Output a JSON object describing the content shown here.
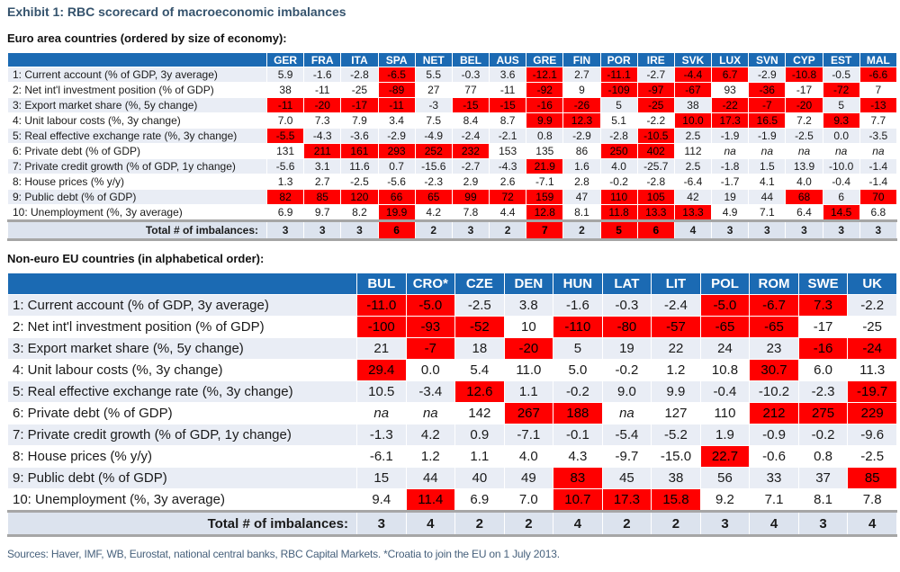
{
  "page": {
    "title": "Exhibit 1: RBC scorecard of macroeconomic imbalances",
    "footer": "Sources: Haver, IMF, WB, Eurostat, national central banks, RBC Capital Markets. *Croatia to join the EU on 1 July 2013."
  },
  "colors": {
    "header_blue": "#1b6ab3",
    "flag_red": "#ff0000",
    "row_alt": "#e9edf5",
    "total_bg": "#dce3ee",
    "bar_gray": "#a6a6a6",
    "title_color": "#35536d",
    "footer_color": "#47617c"
  },
  "tables": [
    {
      "subtitle": "Euro area countries (ordered by size of economy):",
      "columns": [
        "GER",
        "FRA",
        "ITA",
        "SPA",
        "NET",
        "BEL",
        "AUS",
        "GRE",
        "FIN",
        "POR",
        "IRE",
        "SVK",
        "LUX",
        "SVN",
        "CYP",
        "EST",
        "MAL"
      ],
      "rows": [
        {
          "label": "1: Current account (% of GDP, 3y average)",
          "values": [
            "5.9",
            "-1.6",
            "-2.8",
            "-6.5",
            "5.5",
            "-0.3",
            "3.6",
            "-12.1",
            "2.7",
            "-11.1",
            "-2.7",
            "-4.4",
            "6.7",
            "-2.9",
            "-10.8",
            "-0.5",
            "-6.6"
          ],
          "red": [
            0,
            0,
            0,
            1,
            0,
            0,
            0,
            1,
            0,
            1,
            0,
            1,
            1,
            0,
            1,
            0,
            1
          ]
        },
        {
          "label": "2: Net int'l investment position (% of GDP)",
          "values": [
            "38",
            "-11",
            "-25",
            "-89",
            "27",
            "77",
            "-11",
            "-92",
            "9",
            "-109",
            "-97",
            "-67",
            "93",
            "-36",
            "-17",
            "-72",
            "7"
          ],
          "red": [
            0,
            0,
            0,
            1,
            0,
            0,
            0,
            1,
            0,
            1,
            1,
            1,
            0,
            1,
            0,
            1,
            0
          ]
        },
        {
          "label": "3: Export market share (%, 5y change)",
          "values": [
            "-11",
            "-20",
            "-17",
            "-11",
            "-3",
            "-15",
            "-15",
            "-16",
            "-26",
            "5",
            "-25",
            "38",
            "-22",
            "-7",
            "-20",
            "5",
            "-13"
          ],
          "red": [
            1,
            1,
            1,
            1,
            0,
            1,
            1,
            1,
            1,
            0,
            1,
            0,
            1,
            1,
            1,
            0,
            1
          ]
        },
        {
          "label": "4: Unit labour costs (%, 3y change)",
          "values": [
            "7.0",
            "7.3",
            "7.9",
            "3.4",
            "7.5",
            "8.4",
            "8.7",
            "9.9",
            "12.3",
            "5.1",
            "-2.2",
            "10.0",
            "17.3",
            "16.5",
            "7.2",
            "9.3",
            "7.7"
          ],
          "red": [
            0,
            0,
            0,
            0,
            0,
            0,
            0,
            1,
            1,
            0,
            0,
            1,
            1,
            1,
            0,
            1,
            0
          ]
        },
        {
          "label": "5: Real effective exchange rate (%, 3y change)",
          "values": [
            "-5.5",
            "-4.3",
            "-3.6",
            "-2.9",
            "-4.9",
            "-2.4",
            "-2.1",
            "0.8",
            "-2.9",
            "-2.8",
            "-10.5",
            "2.5",
            "-1.9",
            "-1.9",
            "-2.5",
            "0.0",
            "-3.5"
          ],
          "red": [
            1,
            0,
            0,
            0,
            0,
            0,
            0,
            0,
            0,
            0,
            1,
            0,
            0,
            0,
            0,
            0,
            0
          ]
        },
        {
          "label": "6: Private debt (% of GDP)",
          "values": [
            "131",
            "211",
            "161",
            "293",
            "252",
            "232",
            "153",
            "135",
            "86",
            "250",
            "402",
            "112",
            "na",
            "na",
            "na",
            "na",
            "na"
          ],
          "red": [
            0,
            1,
            1,
            1,
            1,
            1,
            0,
            0,
            0,
            1,
            1,
            0,
            0,
            0,
            0,
            0,
            0
          ]
        },
        {
          "label": "7: Private credit growth (% of GDP, 1y change)",
          "values": [
            "-5.6",
            "3.1",
            "11.6",
            "0.7",
            "-15.6",
            "-2.7",
            "-4.3",
            "21.9",
            "1.6",
            "4.0",
            "-25.7",
            "2.5",
            "-1.8",
            "1.5",
            "13.9",
            "-10.0",
            "-1.4"
          ],
          "red": [
            0,
            0,
            0,
            0,
            0,
            0,
            0,
            1,
            0,
            0,
            0,
            0,
            0,
            0,
            0,
            0,
            0
          ]
        },
        {
          "label": "8: House prices (% y/y)",
          "values": [
            "1.3",
            "2.7",
            "-2.5",
            "-5.6",
            "-2.3",
            "2.9",
            "2.6",
            "-7.1",
            "2.8",
            "-0.2",
            "-2.8",
            "-6.4",
            "-1.7",
            "4.1",
            "4.0",
            "-0.4",
            "-1.4"
          ],
          "red": [
            0,
            0,
            0,
            0,
            0,
            0,
            0,
            0,
            0,
            0,
            0,
            0,
            0,
            0,
            0,
            0,
            0
          ]
        },
        {
          "label": "9: Public debt (% of GDP)",
          "values": [
            "82",
            "85",
            "120",
            "66",
            "65",
            "99",
            "72",
            "159",
            "47",
            "110",
            "105",
            "42",
            "19",
            "44",
            "68",
            "6",
            "70"
          ],
          "red": [
            1,
            1,
            1,
            1,
            1,
            1,
            1,
            1,
            0,
            1,
            1,
            0,
            0,
            0,
            1,
            0,
            1
          ]
        },
        {
          "label": "10: Unemployment (%, 3y average)",
          "values": [
            "6.9",
            "9.7",
            "8.2",
            "19.9",
            "4.2",
            "7.8",
            "4.4",
            "12.8",
            "8.1",
            "11.8",
            "13.3",
            "13.3",
            "4.9",
            "7.1",
            "6.4",
            "14.5",
            "6.8"
          ],
          "red": [
            0,
            0,
            0,
            1,
            0,
            0,
            0,
            1,
            0,
            1,
            1,
            1,
            0,
            0,
            0,
            1,
            0
          ]
        }
      ],
      "total_label": "Total # of imbalances:",
      "totals": [
        "3",
        "3",
        "3",
        "6",
        "2",
        "3",
        "2",
        "7",
        "2",
        "5",
        "6",
        "4",
        "3",
        "3",
        "3",
        "3",
        "3"
      ],
      "totals_red": [
        0,
        0,
        0,
        1,
        0,
        0,
        0,
        1,
        0,
        1,
        1,
        0,
        0,
        0,
        0,
        0,
        0
      ]
    },
    {
      "subtitle": "Non-euro EU countries (in alphabetical order):",
      "columns": [
        "BUL",
        "CRO*",
        "CZE",
        "DEN",
        "HUN",
        "LAT",
        "LIT",
        "POL",
        "ROM",
        "SWE",
        "UK"
      ],
      "rows": [
        {
          "label": "1: Current account (% of GDP, 3y average)",
          "values": [
            "-11.0",
            "-5.0",
            "-2.5",
            "3.8",
            "-1.6",
            "-0.3",
            "-2.4",
            "-5.0",
            "-6.7",
            "7.3",
            "-2.2"
          ],
          "red": [
            1,
            1,
            0,
            0,
            0,
            0,
            0,
            1,
            1,
            1,
            0
          ]
        },
        {
          "label": "2: Net int'l investment position (% of GDP)",
          "values": [
            "-100",
            "-93",
            "-52",
            "10",
            "-110",
            "-80",
            "-57",
            "-65",
            "-65",
            "-17",
            "-25"
          ],
          "red": [
            1,
            1,
            1,
            0,
            1,
            1,
            1,
            1,
            1,
            0,
            0
          ]
        },
        {
          "label": "3: Export market share (%, 5y change)",
          "values": [
            "21",
            "-7",
            "18",
            "-20",
            "5",
            "19",
            "22",
            "24",
            "23",
            "-16",
            "-24"
          ],
          "red": [
            0,
            1,
            0,
            1,
            0,
            0,
            0,
            0,
            0,
            1,
            1
          ]
        },
        {
          "label": "4: Unit labour costs (%, 3y change)",
          "values": [
            "29.4",
            "0.0",
            "5.4",
            "11.0",
            "5.0",
            "-0.2",
            "1.2",
            "10.8",
            "30.7",
            "6.0",
            "11.3"
          ],
          "red": [
            1,
            0,
            0,
            0,
            0,
            0,
            0,
            0,
            1,
            0,
            0
          ]
        },
        {
          "label": "5: Real effective exchange rate (%, 3y change)",
          "values": [
            "10.5",
            "-3.4",
            "12.6",
            "1.1",
            "-0.2",
            "9.0",
            "9.9",
            "-0.4",
            "-10.2",
            "-2.3",
            "-19.7"
          ],
          "red": [
            0,
            0,
            1,
            0,
            0,
            0,
            0,
            0,
            0,
            0,
            1
          ]
        },
        {
          "label": "6: Private debt (% of GDP)",
          "values": [
            "na",
            "na",
            "142",
            "267",
            "188",
            "na",
            "127",
            "110",
            "212",
            "275",
            "229"
          ],
          "red": [
            0,
            0,
            0,
            1,
            1,
            0,
            0,
            0,
            1,
            1,
            1
          ]
        },
        {
          "label": "7: Private credit growth (% of GDP, 1y change)",
          "values": [
            "-1.3",
            "4.2",
            "0.9",
            "-7.1",
            "-0.1",
            "-5.4",
            "-5.2",
            "1.9",
            "-0.9",
            "-0.2",
            "-9.6"
          ],
          "red": [
            0,
            0,
            0,
            0,
            0,
            0,
            0,
            0,
            0,
            0,
            0
          ]
        },
        {
          "label": "8: House prices (% y/y)",
          "values": [
            "-6.1",
            "1.2",
            "1.1",
            "4.0",
            "4.3",
            "-9.7",
            "-15.0",
            "22.7",
            "-0.6",
            "0.8",
            "-2.5"
          ],
          "red": [
            0,
            0,
            0,
            0,
            0,
            0,
            0,
            1,
            0,
            0,
            0
          ]
        },
        {
          "label": "9: Public debt (% of GDP)",
          "values": [
            "15",
            "44",
            "40",
            "49",
            "83",
            "45",
            "38",
            "56",
            "33",
            "37",
            "85"
          ],
          "red": [
            0,
            0,
            0,
            0,
            1,
            0,
            0,
            0,
            0,
            0,
            1
          ]
        },
        {
          "label": "10: Unemployment (%, 3y average)",
          "values": [
            "9.4",
            "11.4",
            "6.9",
            "7.0",
            "10.7",
            "17.3",
            "15.8",
            "9.2",
            "7.1",
            "8.1",
            "7.8"
          ],
          "red": [
            0,
            1,
            0,
            0,
            1,
            1,
            1,
            0,
            0,
            0,
            0
          ]
        }
      ],
      "total_label": "Total # of imbalances:",
      "totals": [
        "3",
        "4",
        "2",
        "2",
        "4",
        "2",
        "2",
        "3",
        "4",
        "3",
        "4"
      ],
      "totals_red": [
        0,
        0,
        0,
        0,
        0,
        0,
        0,
        0,
        0,
        0,
        0
      ]
    }
  ]
}
